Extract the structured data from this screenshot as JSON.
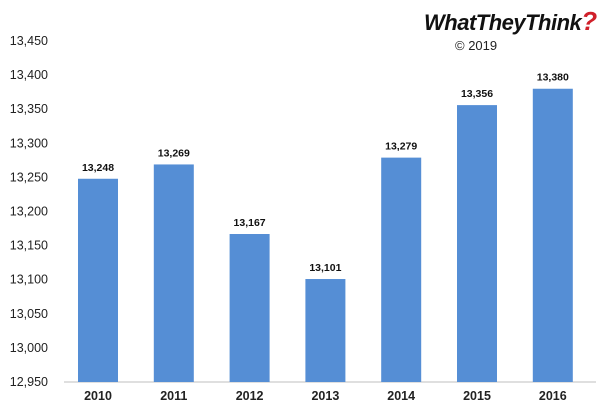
{
  "brand": {
    "name": "WhatTheyThink",
    "mark": "?",
    "copyright": "© 2019",
    "mark_color": "#d0202a"
  },
  "chart_data": {
    "type": "bar",
    "categories": [
      "2010",
      "2011",
      "2012",
      "2013",
      "2014",
      "2015",
      "2016"
    ],
    "values": [
      13248,
      13269,
      13167,
      13101,
      13279,
      13356,
      13380
    ],
    "data_labels": [
      "13,248",
      "13,269",
      "13,167",
      "13,101",
      "13,279",
      "13,356",
      "13,380"
    ],
    "yticks": [
      "12,950",
      "13,000",
      "13,050",
      "13,100",
      "13,150",
      "13,200",
      "13,250",
      "13,300",
      "13,350",
      "13,400",
      "13,450"
    ],
    "ylim": [
      12950,
      13450
    ],
    "title": "",
    "xlabel": "",
    "ylabel": "",
    "grid": false,
    "bar_color": "#558ed5"
  }
}
